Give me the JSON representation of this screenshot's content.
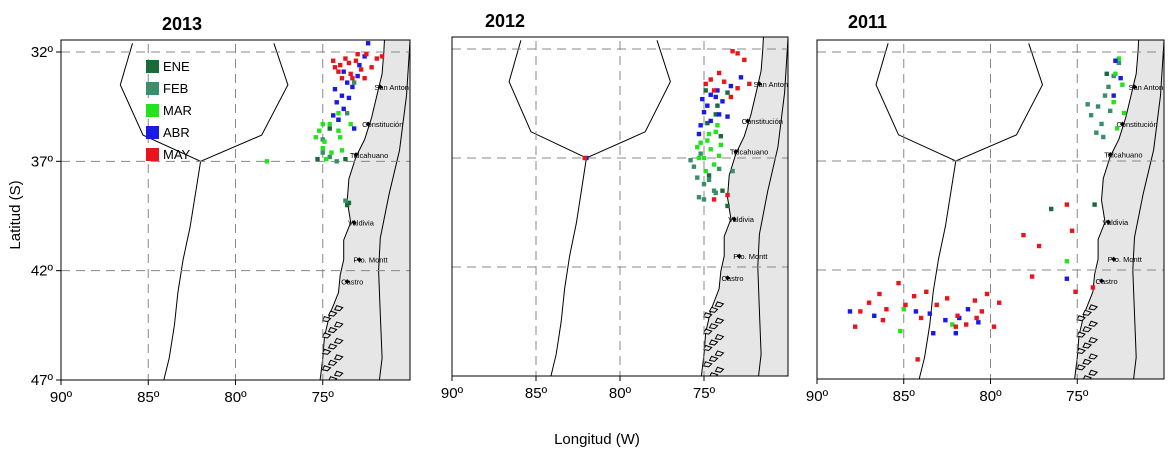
{
  "figure": {
    "ylabel": "Latitud (S)",
    "xlabel": "Longitud (W)"
  },
  "legend": {
    "items": [
      {
        "label": "ENE",
        "color": "#1b6b3a"
      },
      {
        "label": "FEB",
        "color": "#3a8f6a"
      },
      {
        "label": "MAR",
        "color": "#22e31c"
      },
      {
        "label": "ABR",
        "color": "#1a1ae6"
      },
      {
        "label": "MAY",
        "color": "#e8161c"
      }
    ]
  },
  "colors": {
    "land": "#e6e6e6",
    "coast": "#000000",
    "grid": "#888888"
  },
  "chart_data": [
    {
      "type": "scatter",
      "title": "2013",
      "xlim": [
        90,
        70
      ],
      "ylim": [
        47,
        32
      ],
      "x_ticks": [
        "90º",
        "85º",
        "80º",
        "75º"
      ],
      "y_ticks": [
        "32º",
        "37º",
        "42º",
        "47º"
      ],
      "towns": [
        "San Antonio",
        "Constitución",
        "Talcahuano",
        "Valdivia",
        "Pto. Montt",
        "Castro"
      ],
      "series": [
        {
          "name": "ENE",
          "points": [
            [
              74.6,
              35.5
            ],
            [
              73.7,
              36.9
            ],
            [
              75.3,
              36.9
            ],
            [
              73.5,
              38.9
            ],
            [
              73.6,
              39.0
            ]
          ]
        },
        {
          "name": "FEB",
          "points": [
            [
              73.2,
              33.4
            ],
            [
              73.6,
              34.8
            ],
            [
              74.1,
              35.1
            ],
            [
              75.0,
              36.0
            ],
            [
              74.6,
              36.8
            ],
            [
              75.0,
              36.6
            ],
            [
              74.2,
              37.0
            ],
            [
              73.7,
              38.8
            ]
          ]
        },
        {
          "name": "MAR",
          "points": [
            [
              74.1,
              34.8
            ],
            [
              74.6,
              35.3
            ],
            [
              75.2,
              35.6
            ],
            [
              75.4,
              35.9
            ],
            [
              74.9,
              36.1
            ],
            [
              75.0,
              36.4
            ],
            [
              74.5,
              36.6
            ],
            [
              74.8,
              36.9
            ],
            [
              73.4,
              35.3
            ],
            [
              73.9,
              36.5
            ],
            [
              74.0,
              35.9
            ],
            [
              75.0,
              35.3
            ],
            [
              78.2,
              37.0
            ],
            [
              74.1,
              35.6
            ]
          ]
        },
        {
          "name": "ABR",
          "points": [
            [
              72.4,
              31.6
            ],
            [
              72.6,
              32.2
            ],
            [
              72.9,
              32.6
            ],
            [
              73.0,
              33.1
            ],
            [
              73.3,
              33.6
            ],
            [
              73.5,
              34.1
            ],
            [
              73.8,
              34.6
            ],
            [
              74.1,
              35.1
            ],
            [
              74.3,
              33.7
            ],
            [
              73.9,
              34.0
            ],
            [
              74.2,
              34.3
            ],
            [
              73.2,
              35.5
            ],
            [
              74.4,
              34.9
            ],
            [
              73.8,
              32.9
            ],
            [
              73.6,
              33.4
            ]
          ]
        },
        {
          "name": "MAY",
          "points": [
            [
              73.1,
              32.4
            ],
            [
              73.5,
              32.5
            ],
            [
              74.0,
              32.6
            ],
            [
              74.1,
              32.9
            ],
            [
              73.4,
              33.0
            ],
            [
              72.8,
              32.8
            ],
            [
              71.9,
              32.3
            ],
            [
              72.2,
              32.7
            ],
            [
              73.7,
              32.3
            ],
            [
              74.3,
              32.7
            ],
            [
              72.5,
              32.1
            ],
            [
              73.9,
              33.2
            ],
            [
              73.0,
              32.1
            ],
            [
              73.3,
              33.2
            ],
            [
              74.4,
              32.4
            ],
            [
              72.6,
              33.2
            ],
            [
              71.6,
              32.2
            ]
          ]
        }
      ]
    },
    {
      "type": "scatter",
      "title": "2012",
      "xlim": [
        90,
        70
      ],
      "ylim": [
        47,
        32
      ],
      "x_ticks": [
        "90º",
        "85º",
        "80º",
        "75º"
      ],
      "y_ticks": [],
      "towns": [
        "San Antonio",
        "Constitución",
        "Talcahuano",
        "Valdivia",
        "Pto. Montt",
        "Castro"
      ],
      "series": [
        {
          "name": "ENE",
          "points": [
            [
              73.6,
              34.0
            ],
            [
              74.2,
              34.6
            ],
            [
              74.8,
              35.4
            ],
            [
              74.0,
              36.0
            ],
            [
              74.7,
              37.8
            ],
            [
              73.9,
              38.5
            ],
            [
              73.6,
              39.2
            ],
            [
              74.9,
              33.9
            ],
            [
              74.3,
              35.0
            ]
          ]
        },
        {
          "name": "FEB",
          "points": [
            [
              75.2,
              36.8
            ],
            [
              75.6,
              37.4
            ],
            [
              75.0,
              38.2
            ],
            [
              74.7,
              38.0
            ],
            [
              75.4,
              37.9
            ],
            [
              74.4,
              38.5
            ],
            [
              75.3,
              38.8
            ],
            [
              74.1,
              37.5
            ],
            [
              75.0,
              38.9
            ],
            [
              75.8,
              37.1
            ],
            [
              74.3,
              38.6
            ],
            [
              73.3,
              37.6
            ]
          ]
        },
        {
          "name": "MAR",
          "points": [
            [
              74.2,
              35.5
            ],
            [
              74.7,
              35.9
            ],
            [
              75.2,
              36.3
            ],
            [
              74.6,
              36.6
            ],
            [
              75.0,
              37.0
            ],
            [
              74.4,
              37.3
            ],
            [
              74.9,
              37.6
            ],
            [
              75.3,
              37.0
            ],
            [
              74.0,
              36.4
            ],
            [
              74.3,
              35.8
            ],
            [
              75.4,
              36.5
            ],
            [
              74.8,
              36.2
            ],
            [
              74.1,
              36.9
            ]
          ]
        },
        {
          "name": "ABR",
          "points": [
            [
              74.3,
              34.2
            ],
            [
              74.8,
              34.6
            ],
            [
              75.0,
              34.9
            ],
            [
              74.6,
              35.3
            ],
            [
              75.2,
              35.5
            ],
            [
              74.1,
              35.0
            ],
            [
              73.9,
              34.4
            ],
            [
              74.6,
              34.1
            ],
            [
              75.1,
              34.3
            ],
            [
              73.6,
              35.1
            ],
            [
              75.3,
              35.9
            ],
            [
              74.2,
              33.9
            ],
            [
              72.8,
              33.3
            ],
            [
              73.4,
              33.7
            ],
            [
              82.0,
              37.0
            ]
          ]
        },
        {
          "name": "MAY",
          "points": [
            [
              74.1,
              33.1
            ],
            [
              74.6,
              33.4
            ],
            [
              74.4,
              33.9
            ],
            [
              73.8,
              33.5
            ],
            [
              73.4,
              34.2
            ],
            [
              74.9,
              33.6
            ],
            [
              73.3,
              32.1
            ],
            [
              73.0,
              32.2
            ],
            [
              72.6,
              32.5
            ],
            [
              72.3,
              33.6
            ],
            [
              73.0,
              33.8
            ],
            [
              73.6,
              38.7
            ],
            [
              74.4,
              38.9
            ],
            [
              82.1,
              37.0
            ]
          ]
        }
      ]
    },
    {
      "type": "scatter",
      "title": "2011",
      "xlim": [
        90,
        70
      ],
      "ylim": [
        47,
        32
      ],
      "x_ticks": [
        "90º",
        "85º",
        "80º",
        "75º"
      ],
      "y_ticks": [],
      "towns": [
        "San Antonio",
        "Constitución",
        "Talcahuano",
        "Valdivia",
        "Pto. Montt",
        "Castro"
      ],
      "series": [
        {
          "name": "ENE",
          "points": [
            [
              76.5,
              39.2
            ],
            [
              74.0,
              39.0
            ],
            [
              73.3,
              33.0
            ]
          ]
        },
        {
          "name": "FEB",
          "points": [
            [
              73.4,
              34.0
            ],
            [
              73.8,
              34.5
            ],
            [
              74.2,
              34.9
            ],
            [
              73.6,
              35.3
            ],
            [
              73.1,
              34.7
            ],
            [
              73.9,
              35.7
            ],
            [
              73.5,
              35.9
            ],
            [
              74.4,
              34.4
            ],
            [
              72.6,
              32.5
            ],
            [
              72.9,
              33.1
            ],
            [
              73.2,
              33.6
            ]
          ]
        },
        {
          "name": "MAR",
          "points": [
            [
              72.6,
              32.3
            ],
            [
              72.8,
              33.0
            ],
            [
              72.4,
              33.5
            ],
            [
              72.9,
              34.3
            ],
            [
              72.3,
              34.8
            ],
            [
              72.7,
              35.5
            ],
            [
              85.0,
              43.8
            ],
            [
              82.2,
              44.5
            ],
            [
              85.2,
              44.8
            ],
            [
              75.6,
              41.6
            ]
          ]
        },
        {
          "name": "ABR",
          "points": [
            [
              72.8,
              32.4
            ],
            [
              72.5,
              33.2
            ],
            [
              72.9,
              34.0
            ],
            [
              88.1,
              43.9
            ],
            [
              86.7,
              44.1
            ],
            [
              84.3,
              43.9
            ],
            [
              83.5,
              44.0
            ],
            [
              82.6,
              44.3
            ],
            [
              81.8,
              44.2
            ],
            [
              81.3,
              43.8
            ],
            [
              80.7,
              44.4
            ],
            [
              75.6,
              42.4
            ],
            [
              83.3,
              44.9
            ],
            [
              82.0,
              44.9
            ]
          ]
        },
        {
          "name": "MAY",
          "points": [
            [
              75.6,
              39.0
            ],
            [
              75.3,
              40.2
            ],
            [
              74.1,
              42.8
            ],
            [
              75.1,
              43.0
            ],
            [
              80.5,
              43.9
            ],
            [
              79.8,
              44.6
            ],
            [
              79.5,
              43.5
            ],
            [
              80.2,
              43.1
            ],
            [
              80.9,
              43.4
            ],
            [
              81.4,
              44.5
            ],
            [
              82.0,
              44.6
            ],
            [
              82.5,
              43.3
            ],
            [
              83.1,
              43.6
            ],
            [
              83.7,
              43.0
            ],
            [
              84.0,
              44.2
            ],
            [
              84.4,
              43.2
            ],
            [
              84.9,
              43.6
            ],
            [
              85.3,
              42.6
            ],
            [
              86.4,
              43.1
            ],
            [
              87.0,
              43.5
            ],
            [
              87.5,
              43.9
            ],
            [
              87.8,
              44.6
            ],
            [
              84.2,
              46.1
            ],
            [
              81.9,
              44.1
            ],
            [
              77.6,
              42.3
            ],
            [
              77.2,
              40.9
            ],
            [
              78.1,
              40.4
            ],
            [
              80.8,
              44.2
            ],
            [
              86.0,
              43.8
            ],
            [
              86.2,
              44.3
            ]
          ]
        }
      ]
    }
  ]
}
